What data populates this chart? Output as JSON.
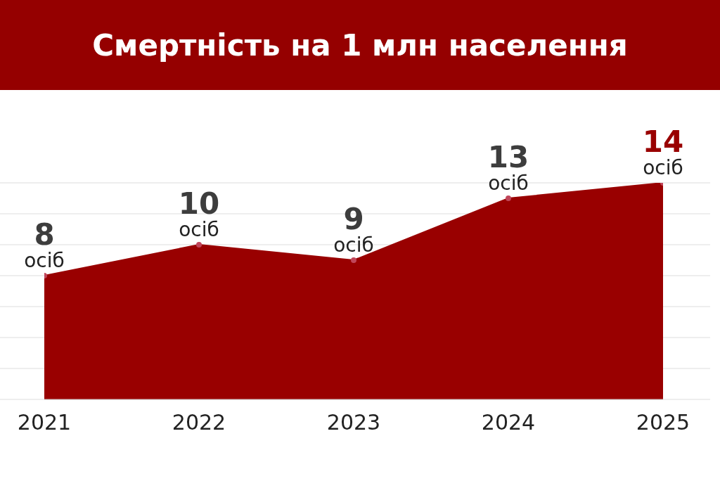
{
  "chart_data": {
    "type": "area",
    "title": "Смертність на 1 млн населення",
    "categories": [
      "2021",
      "2022",
      "2023",
      "2024",
      "2025"
    ],
    "series": [
      {
        "color": "#990000",
        "values": [
          8,
          10,
          9,
          13,
          14
        ],
        "value_labels": [
          "8 осіб",
          "10 осіб",
          "9 осіб",
          "13 осіб",
          "14 осіб"
        ]
      }
    ],
    "ylim": [
      0,
      14
    ],
    "yticks": [
      {
        "value": 0,
        "label": null
      },
      {
        "value": 2,
        "label": null
      },
      {
        "value": 4,
        "label": null
      },
      {
        "value": 6,
        "label": null
      },
      {
        "value": 8,
        "label": null
      },
      {
        "value": 10,
        "label": null
      },
      {
        "value": 12,
        "label": null
      },
      {
        "value": 14,
        "label": null
      }
    ],
    "tick_labels": "x",
    "grid": "y",
    "marker": "circle",
    "legend": false
  }
}
